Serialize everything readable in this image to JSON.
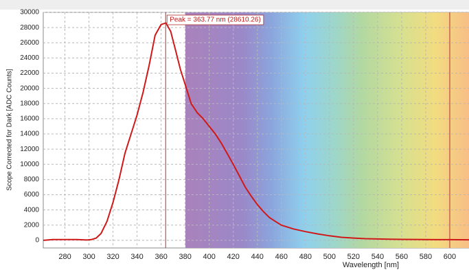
{
  "chart_data": {
    "type": "line",
    "x_label": "Wavelength [nm]",
    "y_label": "Scope Corrected for Dark [ADC Counts]",
    "xlim": [
      262,
      616
    ],
    "ylim": [
      -1000,
      30000
    ],
    "xticks": [
      280,
      300,
      320,
      340,
      360,
      380,
      400,
      420,
      440,
      460,
      480,
      500,
      520,
      540,
      560,
      580,
      600
    ],
    "yticks": [
      0,
      2000,
      4000,
      6000,
      8000,
      10000,
      12000,
      14000,
      16000,
      18000,
      20000,
      22000,
      24000,
      26000,
      28000,
      30000
    ],
    "grid": true,
    "peak": {
      "label": "Peak = 363.77 nm (28610.26)",
      "x": 363.77,
      "y": 28610.26
    },
    "cursor_x": 600,
    "x": [
      262,
      270,
      280,
      290,
      298,
      302,
      306,
      310,
      315,
      320,
      325,
      330,
      335,
      340,
      345,
      350,
      355,
      360,
      364,
      368,
      372,
      376,
      380,
      385,
      390,
      395,
      400,
      405,
      410,
      415,
      420,
      425,
      430,
      435,
      440,
      445,
      450,
      455,
      460,
      470,
      480,
      490,
      500,
      510,
      520,
      530,
      540,
      550,
      560,
      580,
      600,
      616
    ],
    "series": [
      {
        "color": "#d01818",
        "values": [
          0,
          100,
          100,
          100,
          50,
          100,
          300,
          900,
          2500,
          5000,
          8000,
          11500,
          14000,
          16500,
          19500,
          23000,
          27000,
          28400,
          28610,
          27500,
          25000,
          22500,
          20500,
          18000,
          16800,
          16000,
          15000,
          14000,
          12800,
          11400,
          10000,
          8500,
          7000,
          5800,
          4700,
          3800,
          3000,
          2500,
          2000,
          1500,
          1150,
          850,
          600,
          400,
          300,
          220,
          180,
          150,
          130,
          100,
          90,
          80
        ]
      }
    ]
  }
}
